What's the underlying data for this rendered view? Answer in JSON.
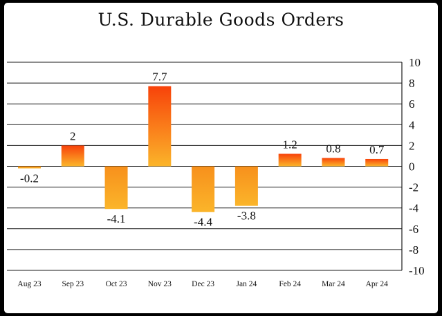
{
  "chart_data": {
    "type": "bar",
    "title": "U.S. Durable Goods Orders",
    "categories": [
      "Aug 23",
      "Sep 23",
      "Oct 23",
      "Nov 23",
      "Dec 23",
      "Jan 24",
      "Feb 24",
      "Mar 24",
      "Apr 24"
    ],
    "values": [
      -0.2,
      2,
      -4.1,
      7.7,
      -4.4,
      -3.8,
      1.2,
      0.8,
      0.7
    ],
    "data_labels": [
      "-0.2",
      "2",
      "-4.1",
      "7.7",
      "-4.4",
      "-3.8",
      "1.2",
      "0.8",
      "0.7"
    ],
    "ylim": [
      -10,
      10
    ],
    "yticks": [
      10,
      8,
      6,
      4,
      2,
      0,
      -2,
      -4,
      -6,
      -8,
      -10
    ],
    "y_axis_side": "right",
    "grid": true,
    "colors": {
      "bar_light": "#fbb52a",
      "bar_dark": "#f8420a",
      "grid": "#1a1a1a"
    }
  }
}
